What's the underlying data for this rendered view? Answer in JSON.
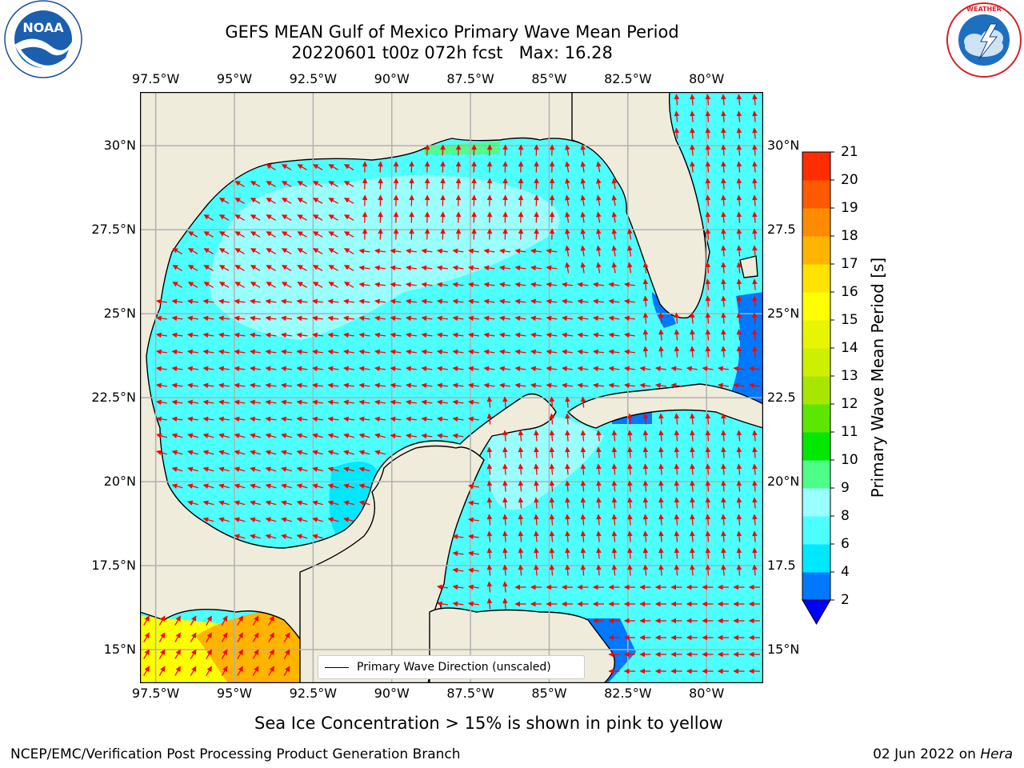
{
  "header": {
    "title_line1": "GEFS MEAN Gulf of Mexico Primary Wave Mean Period",
    "title_line2": "20220601 t00z 072h fcst   Max: 16.28"
  },
  "logos": {
    "left": "NOAA",
    "right": "NATIONAL WEATHER SERVICE"
  },
  "map": {
    "lon_labels": [
      "97.5°W",
      "95°W",
      "92.5°W",
      "90°W",
      "87.5°W",
      "85°W",
      "82.5°W",
      "80°W"
    ],
    "lat_labels_left": [
      "30°N",
      "27.5°N",
      "25°N",
      "22.5°N",
      "20°N",
      "17.5°N",
      "15°N"
    ],
    "lat_labels_right": [
      "30°N",
      "27.5",
      "25°N",
      "22.5",
      "20°N",
      "17.5",
      "15°N"
    ],
    "lon_range": [
      -98,
      -78.2
    ],
    "lat_range": [
      14,
      31.6
    ],
    "land_color": "#efecdc",
    "grid": true
  },
  "colorbar": {
    "label": "Primary Wave Mean Period [s]",
    "ticks": [
      "2",
      "4",
      "6",
      "8",
      "9",
      "10",
      "11",
      "12",
      "13",
      "14",
      "15",
      "16",
      "17",
      "18",
      "19",
      "20",
      "21"
    ],
    "colors": [
      "#0078ff",
      "#00e8ff",
      "#4dffff",
      "#99ffff",
      "#4dff88",
      "#00e800",
      "#5ce600",
      "#a8e600",
      "#ccf000",
      "#e8f500",
      "#ffff00",
      "#ffe200",
      "#ffb400",
      "#ff8c00",
      "#ff5a00",
      "#ff2d00",
      "#ff0000"
    ],
    "under_color": "#0000ff"
  },
  "legend": {
    "label": "Primary Wave Direction (unscaled)"
  },
  "note": "Sea Ice Concentration > 15% is shown in pink to yellow",
  "footer": {
    "left": "NCEP/EMC/Verification Post Processing Product Generation Branch",
    "right_date": "02 Jun 2022 on ",
    "right_host": "Hera"
  }
}
